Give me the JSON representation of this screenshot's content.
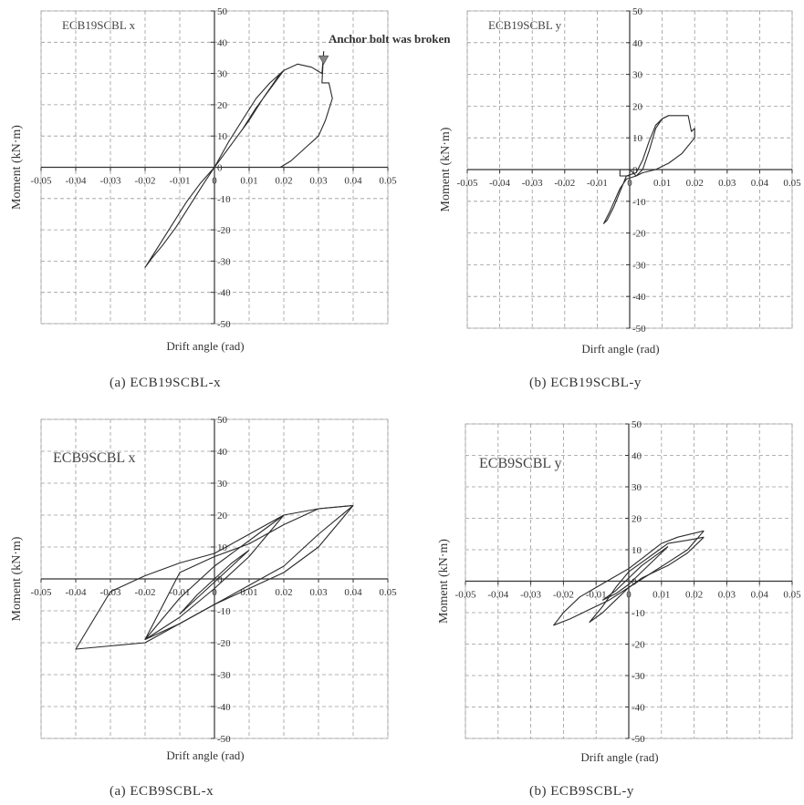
{
  "chart_data": [
    {
      "type": "line",
      "panel_label": "ECB19SCBL x",
      "caption": "(a)  ECB19SCBL-x",
      "xlabel": "Drift angle (rad)",
      "ylabel": "Moment (kN·m)",
      "xlim": [
        -0.05,
        0.05
      ],
      "ylim": [
        -50,
        50
      ],
      "xticks": [
        "-0.05",
        "-0.04",
        "-0.03",
        "-0.02",
        "-0.01",
        "0",
        "0.01",
        "0.02",
        "0.03",
        "0.04",
        "0.05"
      ],
      "yticks": [
        "50",
        "40",
        "30",
        "20",
        "10",
        "0",
        "-10",
        "-20",
        "-30",
        "-40",
        "-50"
      ],
      "grid": true,
      "annotation": "Anchor bolt was broken",
      "series": [
        {
          "x": [
            0,
            0.004,
            0.008,
            0.012,
            0.016,
            0.02,
            0.024,
            0.028,
            0.031,
            0.0315,
            0.031,
            0.033,
            0.034,
            0.032,
            0.03,
            0.026,
            0.022,
            0.019
          ],
          "y": [
            0,
            8,
            15,
            22,
            27,
            31,
            33,
            32,
            30,
            37,
            27,
            27,
            22,
            15,
            10,
            6,
            2,
            0
          ]
        },
        {
          "x": [
            0.019,
            0.014,
            0.01,
            0.006,
            0.002,
            0,
            -0.003,
            -0.007,
            -0.011,
            -0.015,
            -0.018,
            -0.02,
            -0.016,
            -0.012,
            -0.008,
            -0.004,
            0,
            0.004,
            0.008,
            0.012,
            0.016,
            0.02
          ],
          "y": [
            30,
            22,
            15,
            9,
            3,
            0,
            -5,
            -12,
            -19,
            -25,
            -29,
            -32,
            -25,
            -18,
            -11,
            -5,
            0,
            6,
            12,
            19,
            25,
            31
          ]
        }
      ]
    },
    {
      "type": "line",
      "panel_label": "ECB19SCBL y",
      "caption": "(b)  ECB19SCBL-y",
      "xlabel": "Dirft angle (rad)",
      "ylabel": "Moment (kN·m)",
      "xlim": [
        -0.05,
        0.05
      ],
      "ylim": [
        -50,
        50
      ],
      "xticks": [
        "-0.05",
        "-0.04",
        "-0.03",
        "-0.02",
        "-0.01",
        "0",
        "0.01",
        "0.02",
        "0.03",
        "0.04",
        "0.05"
      ],
      "yticks": [
        "50",
        "40",
        "30",
        "20",
        "10",
        "0",
        "-10",
        "-20",
        "-30",
        "-40",
        "-50"
      ],
      "grid": true,
      "series": [
        {
          "x": [
            0,
            0.002,
            0.004,
            0.006,
            0.008,
            0.01,
            0.012,
            0.015,
            0.018,
            0.019,
            0.02,
            0.02,
            0.016,
            0.012,
            0.008,
            0.004,
            0.002
          ],
          "y": [
            0,
            -2,
            0,
            6,
            13,
            16,
            17,
            17,
            17,
            12,
            13,
            10,
            5,
            2,
            0,
            -1,
            -2
          ]
        },
        {
          "x": [
            0.002,
            -0.001,
            -0.003,
            -0.006,
            -0.008,
            -0.007,
            -0.005,
            -0.003,
            -0.001,
            0.002,
            0.004,
            0.006,
            0.008,
            0.01,
            0.012
          ],
          "y": [
            -2,
            -3,
            -6,
            -13,
            -17,
            -16,
            -12,
            -7,
            -2,
            -1,
            3,
            9,
            14,
            16,
            17
          ]
        },
        {
          "x": [
            -0.003,
            -0.003,
            0,
            0,
            -0.003
          ],
          "y": [
            0,
            -2,
            -2,
            0,
            0
          ]
        }
      ]
    },
    {
      "type": "line",
      "panel_label": "ECB9SCBL x",
      "caption": "(a)  ECB9SCBL-x",
      "xlabel": "Drift angle (rad)",
      "ylabel": "Moment (kN·m)",
      "xlim": [
        -0.05,
        0.05
      ],
      "ylim": [
        -50,
        50
      ],
      "xticks": [
        "-0.05",
        "-0.04",
        "-0.03",
        "-0.02",
        "-0.01",
        "0",
        "0.01",
        "0.02",
        "0.03",
        "0.04",
        "0.05"
      ],
      "yticks": [
        "50",
        "40",
        "30",
        "20",
        "10",
        "0",
        "-10",
        "-20",
        "-30",
        "-40",
        "-50"
      ],
      "grid": true,
      "series": [
        {
          "x": [
            0.04,
            0.03,
            0.02,
            0.01,
            0,
            -0.01,
            -0.02,
            -0.03,
            -0.04,
            -0.03,
            -0.02,
            -0.01,
            0,
            0.01,
            0.02,
            0.03,
            0.04
          ],
          "y": [
            23,
            22,
            20,
            14,
            8,
            5,
            1,
            -4,
            -22,
            -21,
            -20,
            -14,
            -8,
            -3,
            2,
            10,
            23
          ]
        },
        {
          "x": [
            0.04,
            0.03,
            0.02,
            0.01,
            0,
            -0.01,
            -0.02,
            -0.01,
            0,
            0.01,
            0.02,
            0.03,
            0.04
          ],
          "y": [
            23,
            22,
            17,
            11,
            7,
            2,
            -19,
            -14,
            -8,
            -2,
            4,
            14,
            23
          ]
        },
        {
          "x": [
            0.02,
            0.01,
            0,
            -0.01,
            -0.02,
            -0.01,
            0,
            0.01,
            0.02
          ],
          "y": [
            20,
            12,
            4,
            -6,
            -19,
            -12,
            -3,
            7,
            20
          ]
        },
        {
          "x": [
            0.01,
            0.005,
            0,
            -0.005,
            -0.01,
            -0.005,
            0,
            0.005,
            0.01
          ],
          "y": [
            9,
            5,
            0,
            -5,
            -11,
            -6,
            -1,
            4,
            9
          ]
        }
      ]
    },
    {
      "type": "line",
      "panel_label": "ECB9SCBL y",
      "caption": "(b)  ECB9SCBL-y",
      "xlabel": "Drift angle (rad)",
      "ylabel": "Moment (kN·m)",
      "xlim": [
        -0.05,
        0.05
      ],
      "ylim": [
        -50,
        50
      ],
      "xticks": [
        "-0.05",
        "-0.04",
        "-0.03",
        "-0.02",
        "-0.01",
        "0",
        "0.01",
        "0.02",
        "0.03",
        "0.04",
        "0.05"
      ],
      "yticks": [
        "50",
        "40",
        "30",
        "20",
        "10",
        "0",
        "-10",
        "-20",
        "-30",
        "-40",
        "-50"
      ],
      "grid": true,
      "series": [
        {
          "x": [
            0.023,
            0.015,
            0.01,
            0.005,
            0,
            -0.005,
            -0.01,
            -0.015,
            -0.02,
            -0.023,
            -0.018,
            -0.012,
            -0.006,
            0,
            0.006,
            0.012,
            0.018,
            0.023
          ],
          "y": [
            16,
            14,
            12,
            8,
            4,
            1,
            -2,
            -5,
            -10,
            -14,
            -12,
            -9,
            -6,
            -2,
            2,
            6,
            10,
            16
          ]
        },
        {
          "x": [
            0.023,
            0.018,
            0.012,
            0.008,
            0.004,
            0,
            -0.004,
            -0.008,
            -0.012,
            -0.008,
            -0.004,
            0,
            0.004,
            0.008,
            0.012,
            0.018,
            0.023
          ],
          "y": [
            14,
            13,
            12,
            9,
            6,
            3,
            -2,
            -8,
            -13,
            -10,
            -6,
            -2,
            1,
            3,
            5,
            9,
            14
          ]
        },
        {
          "x": [
            0.012,
            0.008,
            0.004,
            0,
            -0.004,
            -0.008,
            -0.004,
            0,
            0.004,
            0.008,
            0.012
          ],
          "y": [
            11,
            8,
            5,
            1,
            -3,
            -6,
            -4,
            -1,
            3,
            7,
            11
          ]
        }
      ]
    }
  ]
}
